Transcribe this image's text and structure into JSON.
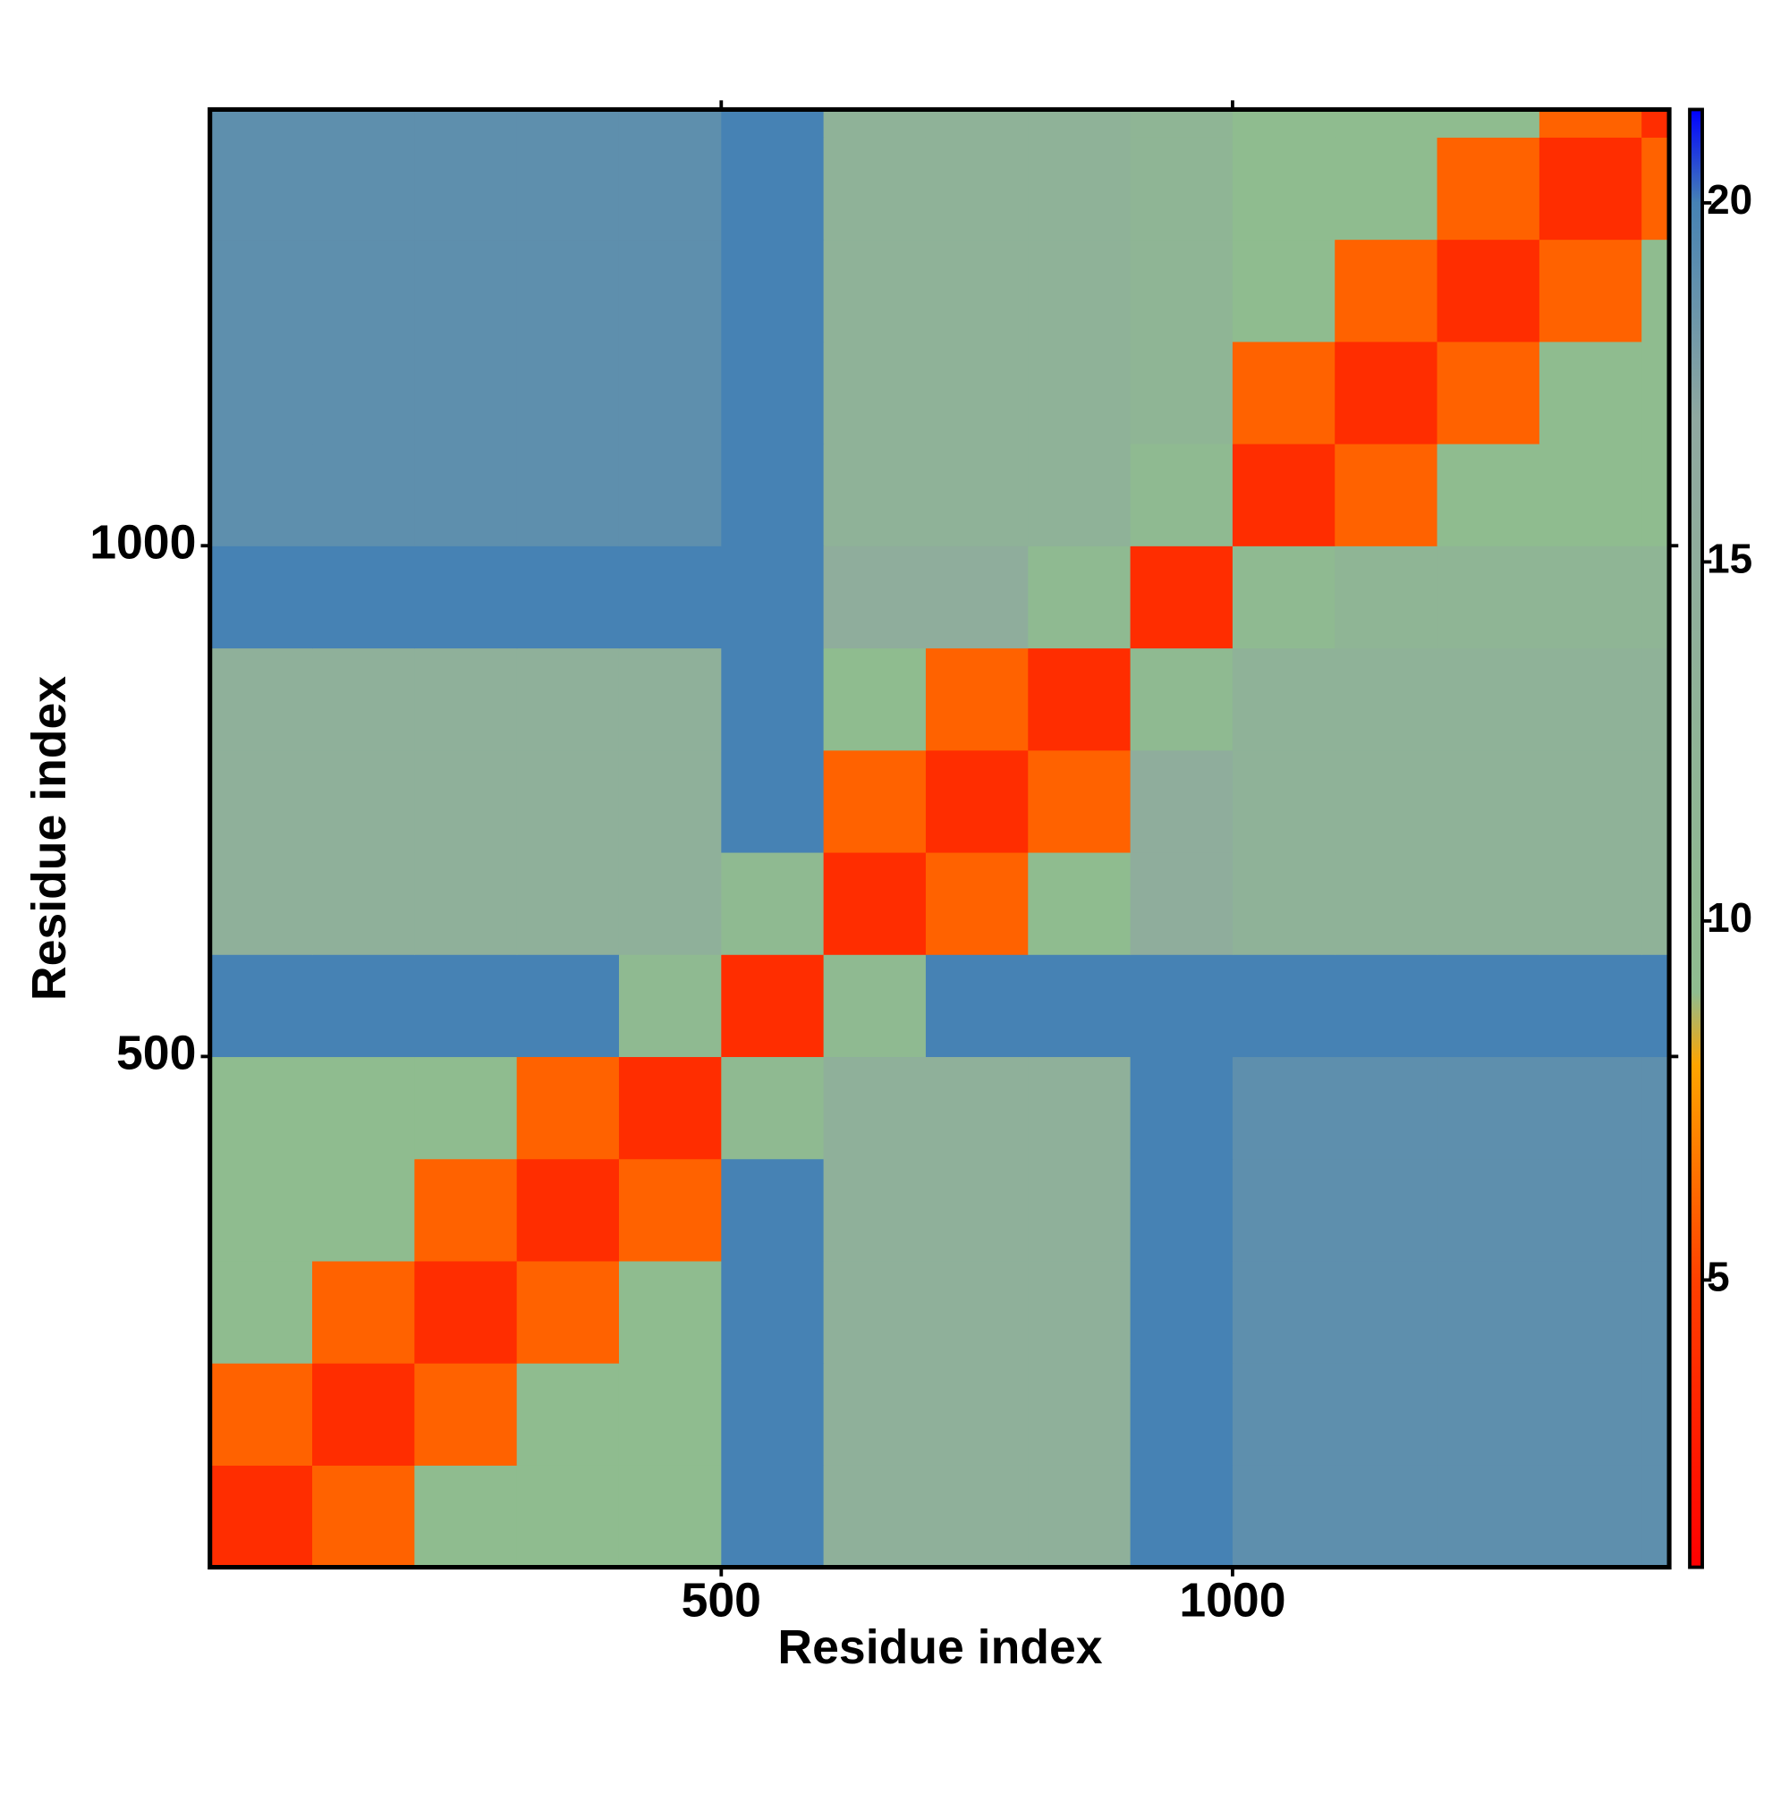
{
  "chart_data": {
    "type": "heatmap",
    "xlabel": "Residue index",
    "ylabel": "Residue index",
    "x": [
      0,
      100,
      200,
      300,
      400,
      500,
      600,
      700,
      800,
      900,
      1000,
      1100,
      1200,
      1300,
      1400,
      1427
    ],
    "y": [
      0,
      100,
      200,
      300,
      400,
      500,
      600,
      700,
      800,
      900,
      1000,
      1100,
      1200,
      1300,
      1400,
      1427
    ],
    "values": [
      [
        3.8,
        6,
        9,
        9,
        9,
        20,
        14,
        14,
        14,
        20,
        19,
        19,
        19,
        19,
        19
      ],
      [
        6,
        3.8,
        6,
        9,
        9,
        20,
        14,
        14,
        14,
        20,
        19,
        19,
        19,
        19,
        19
      ],
      [
        9,
        6,
        3.8,
        6,
        9,
        20,
        14,
        14,
        14,
        20,
        19,
        19,
        19,
        19,
        19
      ],
      [
        9,
        9,
        6,
        3.8,
        6,
        20,
        14,
        14,
        14,
        20,
        19,
        19,
        19,
        19,
        19
      ],
      [
        9,
        9,
        9,
        6,
        3.8,
        10,
        14,
        14,
        14,
        20,
        19,
        19,
        19,
        19,
        19
      ],
      [
        20,
        20,
        20,
        20,
        10,
        3.8,
        10,
        20,
        20,
        20,
        20,
        20,
        20,
        20,
        20
      ],
      [
        14,
        14,
        14,
        14,
        14,
        10,
        3.8,
        6,
        9,
        15,
        13,
        13,
        13,
        13,
        13
      ],
      [
        14,
        14,
        14,
        14,
        14,
        20,
        6,
        3.8,
        6,
        15,
        13,
        13,
        13,
        13,
        13
      ],
      [
        14,
        14,
        14,
        14,
        14,
        20,
        9,
        6,
        3.8,
        10,
        13,
        13,
        13,
        13,
        13
      ],
      [
        20,
        20,
        20,
        20,
        20,
        20,
        15,
        15,
        10,
        3.8,
        10,
        12,
        12,
        12,
        12
      ],
      [
        19,
        19,
        19,
        19,
        19,
        20,
        13,
        13,
        13,
        10,
        3.8,
        6,
        9,
        9,
        9
      ],
      [
        19,
        19,
        19,
        19,
        19,
        20,
        13,
        13,
        13,
        12,
        6,
        3.8,
        6,
        9,
        9
      ],
      [
        19,
        19,
        19,
        19,
        19,
        20,
        13,
        13,
        13,
        12,
        9,
        6,
        3.8,
        6,
        9
      ],
      [
        19,
        19,
        19,
        19,
        19,
        20,
        13,
        13,
        13,
        12,
        9,
        9,
        6,
        3.8,
        6
      ],
      [
        19,
        19,
        19,
        19,
        19,
        20,
        13,
        13,
        13,
        12,
        9,
        9,
        9,
        6,
        3.8
      ]
    ],
    "xlim": [
      0,
      1427
    ],
    "ylim": [
      0,
      1427
    ],
    "xticks": [
      500,
      1000
    ],
    "yticks": [
      500,
      1000
    ],
    "zlim": [
      1,
      21.3
    ],
    "zticks": [
      5,
      10,
      15,
      20
    ],
    "color_stops": [
      [
        1,
        "#ff0000"
      ],
      [
        5,
        "#ff4000"
      ],
      [
        8,
        "#ffa500"
      ],
      [
        9,
        "#8fbc8f"
      ],
      [
        17,
        "#8fa8a0"
      ],
      [
        20,
        "#4682b4"
      ],
      [
        21.3,
        "#0000ff"
      ]
    ]
  }
}
